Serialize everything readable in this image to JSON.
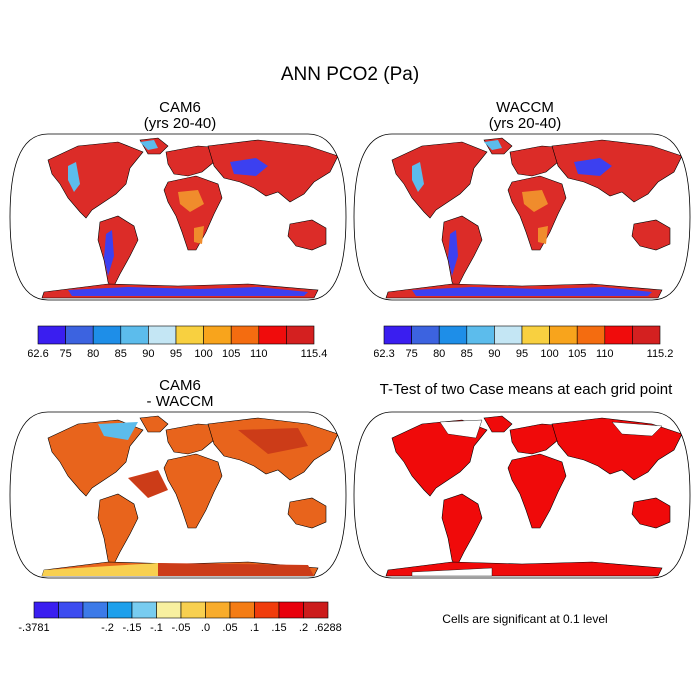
{
  "figure": {
    "title": "ANN PCO2 (Pa)"
  },
  "panels": [
    {
      "title_line1": "CAM6",
      "title_line2": "(yrs 20-40)",
      "colorbar": {
        "labels": [
          "62.6",
          "75",
          "80",
          "85",
          "90",
          "95",
          "100",
          "105",
          "110",
          "115.4"
        ],
        "colors": [
          "#3a1ef0",
          "#3c63e0",
          "#1e8ee8",
          "#5cbcec",
          "#c4e6f4",
          "#f8d040",
          "#f8a41c",
          "#f46c10",
          "#f00c0c",
          "#d42020"
        ]
      }
    },
    {
      "title_line1": "WACCM",
      "title_line2": "(yrs 20-40)",
      "colorbar": {
        "labels": [
          "62.3",
          "75",
          "80",
          "85",
          "90",
          "95",
          "100",
          "105",
          "110",
          "115.2"
        ],
        "colors": [
          "#3a1ef0",
          "#3c63e0",
          "#1e8ee8",
          "#5cbcec",
          "#c4e6f4",
          "#f8d040",
          "#f8a41c",
          "#f46c10",
          "#f00c0c",
          "#d42020"
        ]
      }
    },
    {
      "title_line1": "CAM6",
      "title_line2": "- WACCM",
      "colorbar": {
        "labels": [
          "-.3781",
          "-.2",
          "-.15",
          "-.1",
          "-.05",
          ".0",
          ".05",
          ".1",
          ".15",
          ".2",
          ".6288"
        ],
        "colors": [
          "#3a1ef0",
          "#3c4cf0",
          "#3c7ae8",
          "#1ea0ec",
          "#78ccf0",
          "#f8f0a0",
          "#f8d050",
          "#f8ac2c",
          "#f47c14",
          "#f03c0c",
          "#e8000c",
          "#cc1c1c"
        ]
      }
    },
    {
      "title_line1": "T-Test of two Case means at each grid point",
      "note": "Cells are significant at 0.1 level"
    }
  ],
  "map_colors": {
    "high": "#dc2c28",
    "mid": "#f08c2c",
    "low": "#3c40f0",
    "cold": "#5cbcec",
    "diff_base": "#e8641c",
    "diff_dark": "#cc3c18",
    "signif": "#f00a0a"
  }
}
